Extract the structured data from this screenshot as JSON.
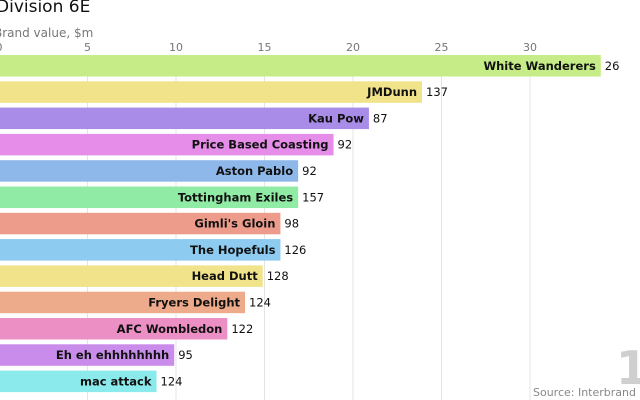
{
  "chart_data": {
    "type": "bar",
    "orientation": "horizontal",
    "title": "Division 6E",
    "subtitle": "Brand value, $m",
    "source": "Source: Interbrand",
    "watermark": "1",
    "xlim": [
      0,
      34
    ],
    "xticks": [
      0,
      5,
      10,
      15,
      20,
      25,
      30
    ],
    "grid": true,
    "categories": [
      "White Wanderers",
      "JMDunn",
      "Kau Pow",
      "Price Based Coasting",
      "Aston Pablo",
      "Tottingham Exiles",
      "Gimli's Gloin",
      "The Hopefuls",
      "Head Dutt",
      "Fryers Delight",
      "AFC Wombledon",
      "Eh eh ehhhhhhhh",
      "mac attack"
    ],
    "values": [
      34.0,
      23.9,
      20.9,
      18.9,
      16.9,
      16.9,
      15.9,
      15.9,
      14.9,
      13.9,
      12.9,
      9.9,
      8.9
    ],
    "data_labels": [
      "26",
      "137",
      "87",
      "92",
      "92",
      "157",
      "98",
      "126",
      "128",
      "124",
      "122",
      "95",
      "124"
    ],
    "colors": [
      "#c5ec87",
      "#f0e38a",
      "#a98ce8",
      "#e58de8",
      "#8fb8ea",
      "#90eba5",
      "#ed9c8c",
      "#8dcbf0",
      "#f0e38a",
      "#eeab8c",
      "#ec8fc5",
      "#c98cea",
      "#8beaeb"
    ]
  }
}
